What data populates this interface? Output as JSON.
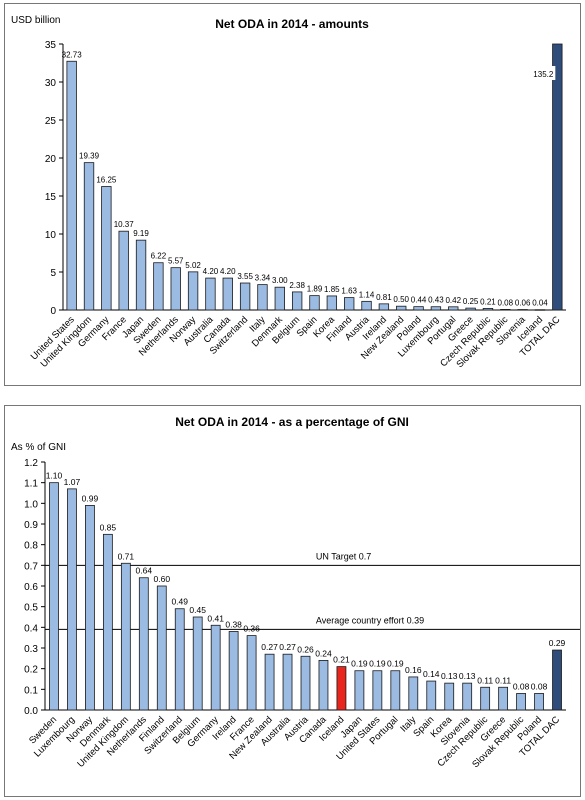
{
  "colors": {
    "bar_default": "#9bbbe3",
    "bar_highlight": "#e8261e",
    "bar_total": "#2e4d7b",
    "bar_stroke": "#1a1a1a"
  },
  "chart_data": [
    {
      "type": "bar",
      "title": "Net ODA in 2014 - amounts",
      "ylabel": "USD billion",
      "ylim": [
        0,
        35
      ],
      "yticks": [
        "0",
        "5",
        "10",
        "15",
        "20",
        "25",
        "30",
        "35"
      ],
      "grid": false,
      "categories": [
        "United States",
        "United Kingdom",
        "Germany",
        "France",
        "Japan",
        "Sweden",
        "Netherlands",
        "Norway",
        "Australia",
        "Canada",
        "Switzerland",
        "Italy",
        "Denmark",
        "Belgium",
        "Spain",
        "Korea",
        "Finland",
        "Austria",
        "Ireland",
        "New Zealand",
        "Poland",
        "Luxembourg",
        "Portugal",
        "Greece",
        "Czech Republic",
        "Slovak Republic",
        "Slovenia",
        "Iceland",
        "TOTAL DAC"
      ],
      "values": [
        32.73,
        19.39,
        16.25,
        10.37,
        9.19,
        6.22,
        5.57,
        5.02,
        4.2,
        4.2,
        3.55,
        3.34,
        3.0,
        2.38,
        1.89,
        1.85,
        1.63,
        1.14,
        0.81,
        0.5,
        0.44,
        0.43,
        0.42,
        0.25,
        0.21,
        0.08,
        0.06,
        0.04,
        135.2
      ],
      "value_labels": [
        "32.73",
        "19.39",
        "16.25",
        "10.37",
        "9.19",
        "6.22",
        "5.57",
        "5.02",
        "4.20",
        "4.20",
        "3.55",
        "3.34",
        "3.00",
        "2.38",
        "1.89",
        "1.85",
        "1.63",
        "1.14",
        "0.81",
        "0.50",
        "0.44",
        "0.43",
        "0.42",
        "0.25",
        "0.21",
        "0.08",
        "0.06",
        "0.04",
        "135.2"
      ],
      "highlight": [
        "Iceland"
      ],
      "total": [
        "TOTAL DAC"
      ]
    },
    {
      "type": "bar",
      "title": "Net ODA in 2014 - as a percentage of GNI",
      "ylabel": "As % of GNI",
      "ylim": [
        0,
        1.2
      ],
      "yticks": [
        "0.0",
        "0.1",
        "0.2",
        "0.3",
        "0.4",
        "0.5",
        "0.6",
        "0.7",
        "0.8",
        "0.9",
        "1.0",
        "1.1",
        "1.2"
      ],
      "grid": false,
      "categories": [
        "Sweden",
        "Luxembourg",
        "Norway",
        "Denmark",
        "United Kingdom",
        "Netherlands",
        "Finland",
        "Switzerland",
        "Belgium",
        "Germany",
        "Ireland",
        "France",
        "New Zealand",
        "Australia",
        "Austria",
        "Canada",
        "Iceland",
        "Japan",
        "United States",
        "Portugal",
        "Italy",
        "Spain",
        "Korea",
        "Slovenia",
        "Czech Republic",
        "Greece",
        "Slovak Republic",
        "Poland",
        "TOTAL DAC"
      ],
      "values": [
        1.1,
        1.07,
        0.99,
        0.85,
        0.71,
        0.64,
        0.6,
        0.49,
        0.45,
        0.41,
        0.38,
        0.36,
        0.27,
        0.27,
        0.26,
        0.24,
        0.21,
        0.19,
        0.19,
        0.19,
        0.16,
        0.14,
        0.13,
        0.13,
        0.11,
        0.11,
        0.08,
        0.08,
        0.29
      ],
      "value_labels": [
        "1.10",
        "1.07",
        "0.99",
        "0.85",
        "0.71",
        "0.64",
        "0.60",
        "0.49",
        "0.45",
        "0.41",
        "0.38",
        "0.36",
        "0.27",
        "0.27",
        "0.26",
        "0.24",
        "0.21",
        "0.19",
        "0.19",
        "0.19",
        "0.16",
        "0.14",
        "0.13",
        "0.13",
        "0.11",
        "0.11",
        "0.08",
        "0.08",
        "0.29"
      ],
      "highlight": [
        "Iceland"
      ],
      "total": [
        "TOTAL DAC"
      ],
      "reference_lines": [
        {
          "value": 0.7,
          "label": "UN Target 0.7"
        },
        {
          "value": 0.39,
          "label": "Average country effort 0.39"
        }
      ]
    }
  ]
}
